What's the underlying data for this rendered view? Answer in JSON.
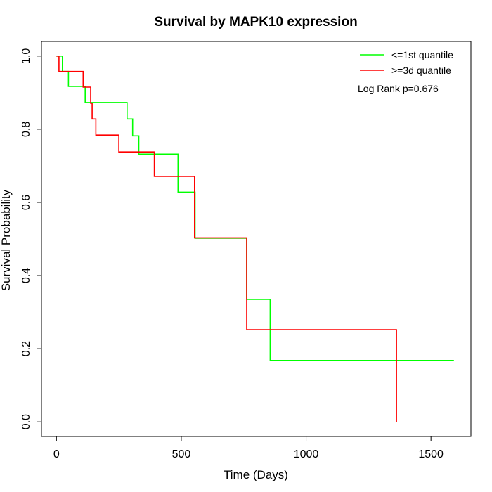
{
  "chart_data": {
    "type": "line",
    "title": "Survival by MAPK10 expression",
    "xlabel": "Time (Days)",
    "ylabel": "Survival Probability",
    "xlim": [
      -60,
      1660
    ],
    "ylim": [
      -0.04,
      1.04
    ],
    "x_ticks": [
      0,
      500,
      1000,
      1500
    ],
    "y_ticks": [
      0.0,
      0.2,
      0.4,
      0.6,
      0.8,
      1.0
    ],
    "x_tick_labels": [
      "0",
      "500",
      "1000",
      "1500"
    ],
    "y_tick_labels": [
      "0.0",
      "0.2",
      "0.4",
      "0.6",
      "0.8",
      "1.0"
    ],
    "grid": false,
    "legend_position": "top-right",
    "annotation": "Log Rank p=0.676",
    "series": [
      {
        "name": "<=1st quantile",
        "color": "#00ff00",
        "step_points": [
          [
            0,
            1.0
          ],
          [
            24,
            1.0
          ],
          [
            24,
            0.958
          ],
          [
            48,
            0.958
          ],
          [
            48,
            0.917
          ],
          [
            115,
            0.917
          ],
          [
            115,
            0.873
          ],
          [
            283,
            0.873
          ],
          [
            283,
            0.828
          ],
          [
            305,
            0.828
          ],
          [
            305,
            0.782
          ],
          [
            330,
            0.782
          ],
          [
            330,
            0.732
          ],
          [
            487,
            0.732
          ],
          [
            487,
            0.628
          ],
          [
            555,
            0.628
          ],
          [
            555,
            0.502
          ],
          [
            762,
            0.502
          ],
          [
            762,
            0.335
          ],
          [
            856,
            0.335
          ],
          [
            856,
            0.168
          ],
          [
            1592,
            0.168
          ]
        ]
      },
      {
        "name": ">=3d quantile",
        "color": "#ff0000",
        "step_points": [
          [
            0,
            1.0
          ],
          [
            10,
            1.0
          ],
          [
            10,
            0.958
          ],
          [
            107,
            0.958
          ],
          [
            107,
            0.915
          ],
          [
            137,
            0.915
          ],
          [
            137,
            0.871
          ],
          [
            143,
            0.871
          ],
          [
            143,
            0.828
          ],
          [
            158,
            0.828
          ],
          [
            158,
            0.784
          ],
          [
            250,
            0.784
          ],
          [
            250,
            0.738
          ],
          [
            392,
            0.738
          ],
          [
            392,
            0.671
          ],
          [
            553,
            0.671
          ],
          [
            553,
            0.503
          ],
          [
            762,
            0.503
          ],
          [
            762,
            0.252
          ],
          [
            1362,
            0.252
          ],
          [
            1362,
            0.0
          ]
        ]
      }
    ]
  }
}
